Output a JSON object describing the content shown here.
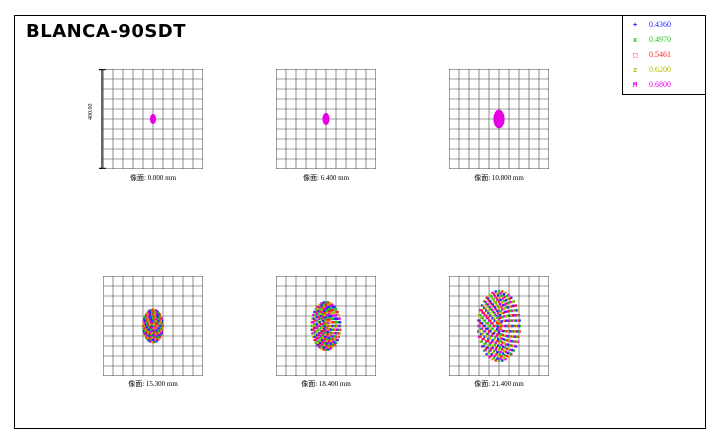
{
  "title": "BLANCA-90SDT",
  "legend": [
    {
      "label": "0.4360",
      "color": "#1c2bff",
      "mark": "+"
    },
    {
      "label": "0.4970",
      "color": "#22c422",
      "mark": "x"
    },
    {
      "label": "0.5461",
      "color": "#ff2020",
      "mark": "□"
    },
    {
      "label": "0.6200",
      "color": "#b8b800",
      "mark": "z"
    },
    {
      "label": "0.6800",
      "color": "#e600e6",
      "mark": "M"
    }
  ],
  "scale_label": "400.00",
  "spots": [
    {
      "caption": "像面: 0.000 mm",
      "spot_size": 0.06
    },
    {
      "caption": "像面: 6.400 mm",
      "spot_size": 0.07
    },
    {
      "caption": "像面: 10.800 mm",
      "spot_size": 0.11
    },
    {
      "caption": "像面: 15.300 mm",
      "spot_size": 0.19
    },
    {
      "caption": "像面: 18.400 mm",
      "spot_size": 0.28
    },
    {
      "caption": "像面: 21.400 mm",
      "spot_size": 0.41
    }
  ]
}
